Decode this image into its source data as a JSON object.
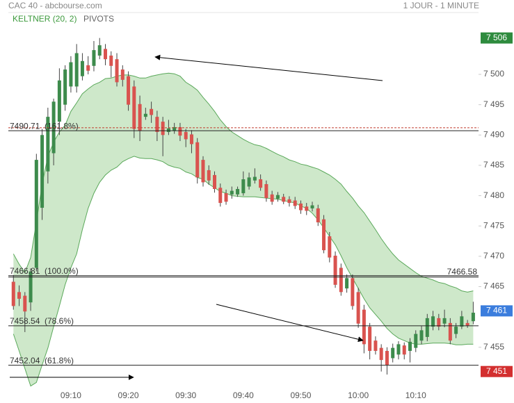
{
  "chart_data": {
    "type": "candlestick",
    "title": "CAC 40 - abcbourse.com",
    "subtitle": "1 JOUR - 1 MINUTE",
    "legend": [
      "KELTNER (20, 2)",
      "PIVOTS"
    ],
    "categories": [
      null,
      null,
      null,
      null,
      null,
      null,
      null,
      null,
      null,
      null,
      "09:10",
      null,
      null,
      null,
      null,
      null,
      null,
      null,
      null,
      null,
      "09:20",
      null,
      null,
      null,
      null,
      null,
      null,
      null,
      null,
      null,
      "09:30",
      null,
      null,
      null,
      null,
      null,
      null,
      null,
      null,
      null,
      "09:40",
      null,
      null,
      null,
      null,
      null,
      null,
      null,
      null,
      null,
      "09:50",
      null,
      null,
      null,
      null,
      null,
      null,
      null,
      null,
      null,
      "10:00",
      null,
      null,
      null,
      null,
      null,
      null,
      null,
      null,
      null,
      "10:10",
      null,
      null,
      null,
      null,
      null,
      null,
      null,
      null,
      null,
      null
    ],
    "open": [
      7465.8,
      7464.1,
      7463.5,
      7462.4,
      7468.1,
      7478.0,
      7484.0,
      7487.0,
      7492.2,
      7495.0,
      7498.0,
      7498.0,
      7499.7,
      7501.5,
      7501.4,
      7503.1,
      7504.2,
      7503.1,
      7502.5,
      7500.8,
      7499.7,
      7498.0,
      7495.1,
      7493.0,
      7494.3,
      7493.0,
      7492.2,
      7490.5,
      7490.7,
      7491.3,
      7490.5,
      7490.1,
      7488.8,
      7485.9,
      7484.2,
      7483.4,
      7481.3,
      7480.4,
      7480.2,
      7480.2,
      7480.4,
      7481.5,
      7482.5,
      7482.7,
      7481.9,
      7480.2,
      7479.5,
      7479.8,
      7479.4,
      7479.2,
      7478.7,
      7478.2,
      7477.9,
      7477.9,
      7476.1,
      7473.3,
      7470.1,
      7468.1,
      7464.7,
      7466.4,
      7464.1,
      7461.2,
      7458.4,
      7456.1,
      7454.9,
      7454.4,
      7453.2,
      7453.8,
      7455.3,
      7454.4,
      7454.9,
      7456.1,
      7456.7,
      7458.4,
      7459.8,
      7458.9,
      7459.0,
      7457.2,
      7458.4,
      7459.0,
      7459.3
    ],
    "high": [
      7466.9,
      7465.2,
      7464.1,
      7468.0,
      7486.9,
      7491.0,
      7494.5,
      7496.0,
      7501.0,
      7501.5,
      7503.0,
      7505.0,
      7503.5,
      7503.0,
      7505.5,
      7506.0,
      7505.0,
      7503.8,
      7503.5,
      7501.5,
      7500.5,
      7499.0,
      7496.5,
      7494.5,
      7495.5,
      7494.0,
      7493.0,
      7492.5,
      7492.0,
      7492.0,
      7491.0,
      7490.8,
      7489.5,
      7486.5,
      7485.0,
      7484.0,
      7482.0,
      7481.0,
      7481.5,
      7481.5,
      7484.0,
      7483.8,
      7484.5,
      7483.5,
      7482.5,
      7480.8,
      7480.6,
      7480.3,
      7479.9,
      7479.8,
      7479.2,
      7478.8,
      7479.0,
      7478.5,
      7476.8,
      7474.0,
      7470.8,
      7468.8,
      7467.0,
      7467.0,
      7464.8,
      7462.0,
      7459.0,
      7456.8,
      7455.5,
      7455.0,
      7455.6,
      7456.0,
      7455.8,
      7456.5,
      7457.8,
      7458.5,
      7460.5,
      7461.0,
      7460.5,
      7461.2,
      7459.8,
      7459.0,
      7461.0,
      7459.5,
      7462.5
    ],
    "low": [
      7461.2,
      7461.8,
      7457.5,
      7461.0,
      7467.5,
      7476.0,
      7482.0,
      7485.0,
      7490.0,
      7494.0,
      7497.0,
      7497.0,
      7499.0,
      7500.0,
      7500.5,
      7502.5,
      7501.5,
      7499.5,
      7498.0,
      7498.0,
      7494.0,
      7489.5,
      7489.0,
      7492.5,
      7492.0,
      7489.0,
      7486.5,
      7490.0,
      7490.2,
      7489.0,
      7488.0,
      7487.0,
      7482.0,
      7481.5,
      7481.8,
      7480.5,
      7478.2,
      7478.5,
      7479.5,
      7479.8,
      7480.0,
      7481.0,
      7482.0,
      7480.8,
      7479.0,
      7478.5,
      7479.0,
      7478.6,
      7478.2,
      7477.8,
      7477.0,
      7476.8,
      7477.4,
      7475.0,
      7470.5,
      7469.0,
      7464.8,
      7463.5,
      7464.0,
      7461.2,
      7458.2,
      7454.0,
      7453.0,
      7453.8,
      7451.0,
      7450.5,
      7452.5,
      7453.0,
      7453.0,
      7452.5,
      7454.2,
      7455.5,
      7456.0,
      7457.8,
      7457.8,
      7458.3,
      7455.5,
      7456.5,
      7458.0,
      7458.2,
      7458.8
    ],
    "close": [
      7461.8,
      7463.0,
      7460.9,
      7467.5,
      7485.9,
      7490.0,
      7493.0,
      7495.5,
      7499.0,
      7500.8,
      7502.0,
      7503.5,
      7502.2,
      7500.6,
      7504.0,
      7504.8,
      7502.5,
      7501.4,
      7498.7,
      7499.1,
      7495.0,
      7491.0,
      7490.7,
      7493.5,
      7493.3,
      7490.5,
      7490.0,
      7491.1,
      7491.3,
      7489.9,
      7489.3,
      7488.5,
      7483.0,
      7482.2,
      7482.5,
      7481.1,
      7478.8,
      7479.0,
      7480.8,
      7481.1,
      7482.7,
      7483.0,
      7483.1,
      7481.3,
      7479.6,
      7479.0,
      7480.1,
      7479.0,
      7478.8,
      7478.3,
      7477.6,
      7477.5,
      7478.4,
      7475.6,
      7471.0,
      7469.8,
      7465.3,
      7464.1,
      7466.4,
      7461.8,
      7458.9,
      7455.5,
      7454.4,
      7454.4,
      7452.9,
      7452.1,
      7454.9,
      7455.5,
      7453.8,
      7455.9,
      7457.2,
      7457.8,
      7459.8,
      7460.1,
      7458.4,
      7459.8,
      7456.1,
      7458.4,
      7460.1,
      7458.6,
      7460.7
    ],
    "up_color": "#3d8b4c",
    "down_color": "#d9534f",
    "keltner": {
      "color": "#5aa85a",
      "fill": "#c9e6c4",
      "upper": [
        7470.4,
        7468.7,
        7467.3,
        7469.8,
        7475.6,
        7481.9,
        7486.5,
        7488.8,
        7490.5,
        7491.6,
        7493.9,
        7495.3,
        7496.8,
        7497.6,
        7498.3,
        7498.7,
        7499.3,
        7499.4,
        7499.7,
        7499.9,
        7499.9,
        7499.7,
        7499.4,
        7499.4,
        7499.7,
        7499.9,
        7500.1,
        7500.2,
        7500.1,
        7499.7,
        7498.7,
        7498.1,
        7497.4,
        7496.2,
        7495.1,
        7493.9,
        7492.5,
        7491.4,
        7490.5,
        7489.9,
        7489.3,
        7488.8,
        7488.4,
        7488.2,
        7487.8,
        7487.3,
        7486.8,
        7486.4,
        7485.9,
        7485.6,
        7485.2,
        7485.0,
        7484.7,
        7484.4,
        7483.9,
        7483.4,
        7482.7,
        7481.9,
        7480.7,
        7479.6,
        7478.3,
        7477.2,
        7475.8,
        7474.4,
        7472.9,
        7471.6,
        7470.4,
        7469.4,
        7468.7,
        7468.0,
        7467.3,
        7466.7,
        7466.4,
        7466.1,
        7465.7,
        7465.5,
        7465.1,
        7464.8,
        7464.3,
        7464.1,
        7464.3
      ],
      "lower": [
        7457.2,
        7454.4,
        7451.5,
        7448.6,
        7449.2,
        7452.1,
        7454.9,
        7458.4,
        7461.8,
        7465.3,
        7468.1,
        7470.4,
        7474.4,
        7477.9,
        7480.4,
        7482.2,
        7483.4,
        7484.2,
        7484.7,
        7485.6,
        7486.1,
        7486.5,
        7486.2,
        7486.1,
        7486.1,
        7485.9,
        7485.6,
        7485.0,
        7484.7,
        7484.5,
        7483.9,
        7483.6,
        7483.0,
        7482.7,
        7481.9,
        7481.3,
        7480.7,
        7480.4,
        7480.0,
        7479.9,
        7479.8,
        7479.8,
        7479.8,
        7479.7,
        7479.6,
        7479.5,
        7479.4,
        7479.2,
        7479.0,
        7478.8,
        7478.3,
        7477.9,
        7477.1,
        7476.0,
        7474.7,
        7473.3,
        7471.9,
        7470.1,
        7468.1,
        7466.4,
        7464.7,
        7463.0,
        7461.5,
        7460.4,
        7459.3,
        7458.1,
        7457.2,
        7456.5,
        7456.1,
        7455.7,
        7455.5,
        7455.5,
        7455.6,
        7455.7,
        7455.7,
        7455.7,
        7455.6,
        7455.4,
        7455.4,
        7455.5,
        7455.5
      ]
    },
    "levels": [
      {
        "value": 7490.71,
        "label": "7490.71",
        "pct": "(161.8%)"
      },
      {
        "value": 7466.81,
        "label": "7466.81",
        "pct": "(100.0%)"
      },
      {
        "value": 7458.54,
        "label": "7458.54",
        "pct": "(78.6%)"
      },
      {
        "value": 7452.04,
        "label": "7452.04",
        "pct": "(61.8%)"
      }
    ],
    "close_line": {
      "value": 7466.58,
      "label": "7466.58"
    },
    "reference_line": {
      "value": 7491.2,
      "color": "#c0392b",
      "dashed": true
    },
    "markers": [
      {
        "value": 7506,
        "label": "7 506",
        "color": "#2e8b3e"
      },
      {
        "value": 7461,
        "label": "7 461",
        "color": "#3b7ddd"
      },
      {
        "value": 7451,
        "label": "7 451",
        "color": "#d32f2f"
      }
    ],
    "ylim": [
      7448.1,
      7510.2
    ],
    "yticks": [
      {
        "value": 7455,
        "label": "7 455"
      },
      {
        "value": 7465,
        "label": "7 465"
      },
      {
        "value": 7470,
        "label": "7 470"
      },
      {
        "value": 7475,
        "label": "7 475"
      },
      {
        "value": 7480,
        "label": "7 480"
      },
      {
        "value": 7485,
        "label": "7 485"
      },
      {
        "value": 7490,
        "label": "7 490"
      },
      {
        "value": 7495,
        "label": "7 495"
      },
      {
        "value": 7500,
        "label": "7 500"
      }
    ]
  }
}
